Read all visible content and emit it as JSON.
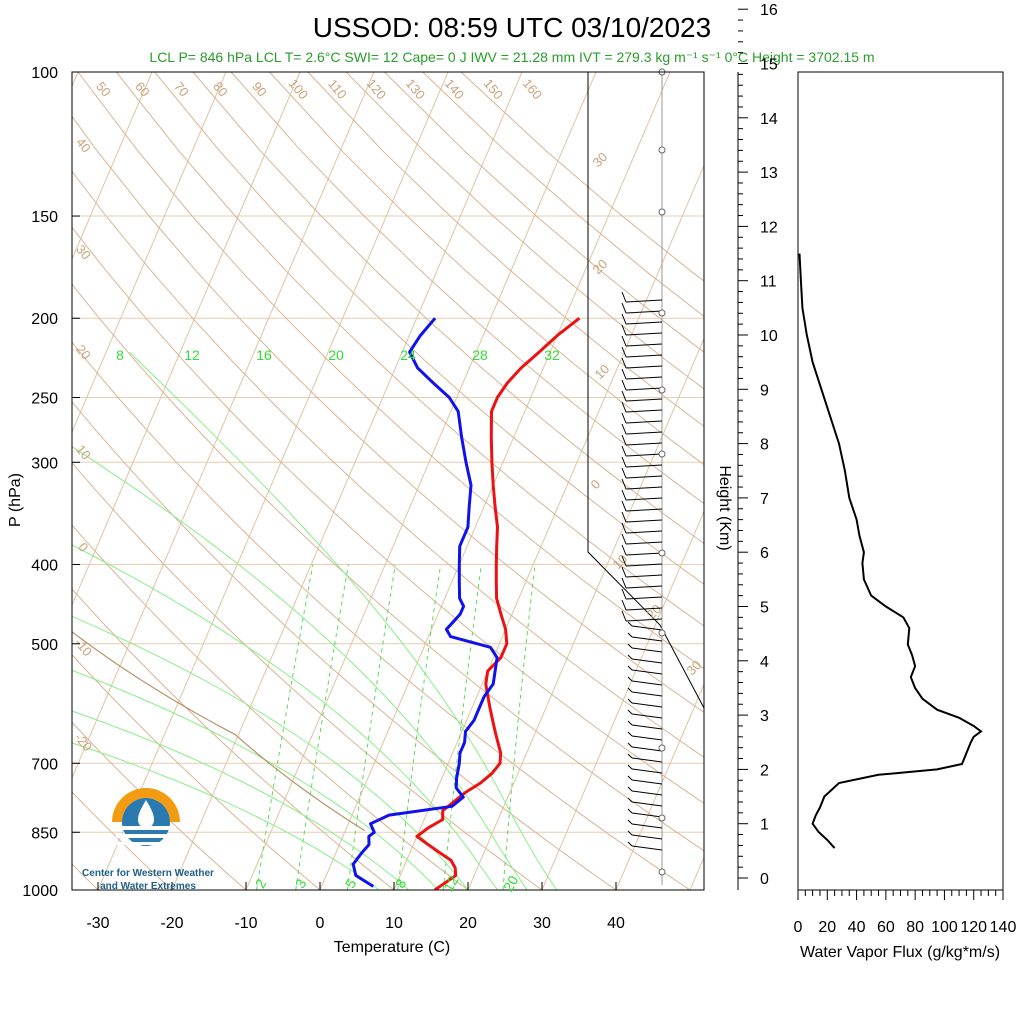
{
  "title": "USSOD: 08:59 UTC 03/10/2023",
  "summary": "LCL P= 846 hPa  LCL T= 2.6°C  SWI= 12  Cape= 0 J  IWV = 21.28 mm  IVT = 279.3 kg m⁻¹ s⁻¹  0°C Height = 3702.15 m",
  "logo": {
    "line1": "Center for Western Weather",
    "line2": "and Water Extremes"
  },
  "colors": {
    "temperature": "#ee1111",
    "dewpoint": "#1111ee",
    "dry_adiabat": "#c9a27a",
    "mixing_ratio": "#33dd33",
    "summary_text": "#2a9d2a",
    "logo_orange": "#f39c12",
    "logo_blue": "#2a7ab0"
  },
  "chart_data": [
    {
      "type": "line",
      "name": "skew-t",
      "xlabel": "Temperature (C)",
      "ylabel": "P (hPa)",
      "x_ticks": [
        -30,
        -20,
        -10,
        0,
        10,
        20,
        30,
        40
      ],
      "y_ticks": [
        100,
        150,
        200,
        250,
        300,
        400,
        500,
        700,
        850,
        1000
      ],
      "pressure_labels": [
        "100",
        "150",
        "200",
        "250",
        "300",
        "400",
        "500",
        "700",
        "850",
        "1000"
      ],
      "x_tick_labels": [
        "-30",
        "-20",
        "-10",
        "0",
        "10",
        "20",
        "30",
        "40"
      ],
      "xlim": [
        -35,
        50
      ],
      "ylim": [
        1000,
        100
      ],
      "y_scale": "log",
      "mixing_ratio_labels_top": [
        "8",
        "12",
        "16",
        "20",
        "24",
        "28",
        "32"
      ],
      "mixing_ratio_labels_bottom": [
        "2",
        "3",
        "5",
        "8",
        "12",
        "20"
      ],
      "dry_adiabat_labels_top": [
        "50",
        "60",
        "70",
        "80",
        "90",
        "100",
        "110",
        "120",
        "130",
        "140",
        "150",
        "160"
      ],
      "dry_adiabat_labels_left": [
        "40",
        "30",
        "20",
        "10",
        "0",
        "-10",
        "-20"
      ],
      "wind_scale_labels": [
        "30",
        "20",
        "10",
        "0",
        "10",
        "20",
        "30"
      ],
      "series": [
        {
          "key": "temperature",
          "points": [
            [
              1000,
              15.5
            ],
            [
              980,
              16.5
            ],
            [
              960,
              17.5
            ],
            [
              940,
              17
            ],
            [
              920,
              16
            ],
            [
              900,
              14
            ],
            [
              880,
              12
            ],
            [
              860,
              10
            ],
            [
              840,
              11
            ],
            [
              820,
              12.5
            ],
            [
              800,
              12
            ],
            [
              780,
              13
            ],
            [
              760,
              14
            ],
            [
              740,
              15.5
            ],
            [
              720,
              16.5
            ],
            [
              700,
              17
            ],
            [
              680,
              16.5
            ],
            [
              660,
              15.5
            ],
            [
              640,
              14.5
            ],
            [
              620,
              13.5
            ],
            [
              600,
              12.5
            ],
            [
              580,
              11.5
            ],
            [
              560,
              10.5
            ],
            [
              540,
              10
            ],
            [
              520,
              11
            ],
            [
              500,
              11
            ],
            [
              480,
              10
            ],
            [
              460,
              8.5
            ],
            [
              440,
              7
            ],
            [
              420,
              6
            ],
            [
              400,
              5
            ],
            [
              380,
              4
            ],
            [
              360,
              3
            ],
            [
              340,
              1.5
            ],
            [
              320,
              0
            ],
            [
              300,
              -1.5
            ],
            [
              280,
              -3
            ],
            [
              260,
              -4.5
            ],
            [
              250,
              -4.5
            ],
            [
              240,
              -4
            ],
            [
              230,
              -3
            ],
            [
              220,
              -1.5
            ],
            [
              210,
              0
            ],
            [
              200,
              2
            ]
          ]
        },
        {
          "key": "dewpoint",
          "points": [
            [
              990,
              7
            ],
            [
              960,
              4
            ],
            [
              930,
              3
            ],
            [
              900,
              3.5
            ],
            [
              880,
              4
            ],
            [
              860,
              3.5
            ],
            [
              850,
              4
            ],
            [
              830,
              3
            ],
            [
              810,
              5
            ],
            [
              790,
              13
            ],
            [
              770,
              14
            ],
            [
              750,
              12.5
            ],
            [
              730,
              12
            ],
            [
              700,
              11.5
            ],
            [
              680,
              11
            ],
            [
              660,
              11
            ],
            [
              640,
              10.5
            ],
            [
              620,
              11
            ],
            [
              600,
              11
            ],
            [
              580,
              11
            ],
            [
              560,
              11.5
            ],
            [
              540,
              11
            ],
            [
              520,
              10.5
            ],
            [
              505,
              9
            ],
            [
              495,
              5
            ],
            [
              490,
              3
            ],
            [
              480,
              2
            ],
            [
              470,
              2.5
            ],
            [
              460,
              3
            ],
            [
              450,
              3
            ],
            [
              440,
              2
            ],
            [
              420,
              1
            ],
            [
              400,
              0
            ],
            [
              380,
              -1
            ],
            [
              360,
              -1
            ],
            [
              340,
              -2
            ],
            [
              320,
              -3
            ],
            [
              300,
              -5
            ],
            [
              280,
              -7
            ],
            [
              260,
              -9
            ],
            [
              250,
              -11
            ],
            [
              240,
              -14
            ],
            [
              230,
              -17
            ],
            [
              220,
              -19
            ],
            [
              210,
              -18.5
            ],
            [
              200,
              -17.5
            ]
          ]
        }
      ]
    },
    {
      "type": "line",
      "name": "water-vapor-flux",
      "xlabel": "Water Vapor Flux (g/kg*m/s)",
      "ylabel": "Height (Km)",
      "xlim": [
        0,
        140
      ],
      "ylim": [
        0,
        16
      ],
      "x_ticks": [
        0,
        20,
        40,
        60,
        80,
        100,
        120,
        140
      ],
      "x_tick_labels": [
        "0",
        "20",
        "40",
        "60",
        "80",
        "100",
        "120",
        "140"
      ],
      "y_ticks": [
        0,
        1,
        2,
        3,
        4,
        5,
        6,
        7,
        8,
        9,
        10,
        11,
        12,
        13,
        14,
        15,
        16
      ],
      "y_tick_labels": [
        "0",
        "1",
        "2",
        "3",
        "4",
        "5",
        "6",
        "7",
        "8",
        "9",
        "10",
        "11",
        "12",
        "13",
        "14",
        "15",
        "16"
      ],
      "points": [
        [
          25,
          0.55
        ],
        [
          20,
          0.7
        ],
        [
          14,
          0.85
        ],
        [
          10,
          1.0
        ],
        [
          12,
          1.15
        ],
        [
          15,
          1.3
        ],
        [
          18,
          1.5
        ],
        [
          28,
          1.75
        ],
        [
          55,
          1.9
        ],
        [
          95,
          2.0
        ],
        [
          112,
          2.1
        ],
        [
          115,
          2.3
        ],
        [
          118,
          2.5
        ],
        [
          120,
          2.6
        ],
        [
          125,
          2.7
        ],
        [
          120,
          2.8
        ],
        [
          110,
          2.95
        ],
        [
          95,
          3.1
        ],
        [
          85,
          3.3
        ],
        [
          80,
          3.5
        ],
        [
          77,
          3.7
        ],
        [
          80,
          3.9
        ],
        [
          78,
          4.1
        ],
        [
          75,
          4.3
        ],
        [
          76,
          4.6
        ],
        [
          72,
          4.8
        ],
        [
          60,
          5.0
        ],
        [
          50,
          5.2
        ],
        [
          45,
          5.5
        ],
        [
          44,
          5.8
        ],
        [
          45,
          6.0
        ],
        [
          42,
          6.3
        ],
        [
          40,
          6.6
        ],
        [
          35,
          7.0
        ],
        [
          32,
          7.5
        ],
        [
          28,
          8.0
        ],
        [
          22,
          8.5
        ],
        [
          16,
          9.0
        ],
        [
          10,
          9.5
        ],
        [
          6,
          10.0
        ],
        [
          3,
          10.5
        ],
        [
          2,
          11.0
        ],
        [
          1,
          11.5
        ]
      ]
    }
  ]
}
